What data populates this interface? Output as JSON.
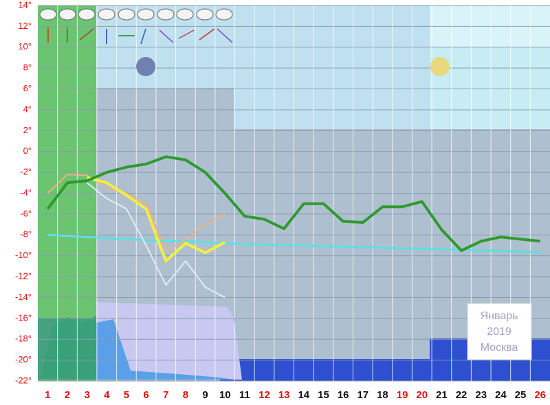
{
  "chart_data": {
    "type": "line",
    "categories": [
      1,
      2,
      3,
      4,
      5,
      6,
      7,
      8,
      9,
      10,
      11,
      12,
      13,
      14,
      15,
      16,
      17,
      18,
      19,
      20,
      21,
      22,
      23,
      24,
      25,
      26
    ],
    "category_colors": [
      "#e01010",
      "#e01010",
      "#e01010",
      "#e01010",
      "#e01010",
      "#e01010",
      "#e01010",
      "#e01010",
      "#111111",
      "#111111",
      "#111111",
      "#e01010",
      "#e01010",
      "#111111",
      "#111111",
      "#111111",
      "#111111",
      "#111111",
      "#e01010",
      "#e01010",
      "#111111",
      "#111111",
      "#111111",
      "#111111",
      "#111111",
      "#e01010"
    ],
    "ylim": [
      -22,
      14
    ],
    "yticks": [
      {
        "value": 14,
        "label": "14°"
      },
      {
        "value": 12,
        "label": "12°"
      },
      {
        "value": 10,
        "label": "10°"
      },
      {
        "value": 8,
        "label": "8°"
      },
      {
        "value": 6,
        "label": "6°"
      },
      {
        "value": 4,
        "label": "4°"
      },
      {
        "value": 2,
        "label": "2°"
      },
      {
        "value": 0,
        "label": "0°"
      },
      {
        "value": -2,
        "label": "-2°"
      },
      {
        "value": -4,
        "label": "-4°"
      },
      {
        "value": -6,
        "label": "-6°"
      },
      {
        "value": -8,
        "label": "-8°"
      },
      {
        "value": -10,
        "label": "-10°"
      },
      {
        "value": -12,
        "label": "-12°"
      },
      {
        "value": -14,
        "label": "-14°"
      },
      {
        "value": -16,
        "label": "-16°"
      },
      {
        "value": -18,
        "label": "-18°"
      },
      {
        "value": -20,
        "label": "-20°"
      },
      {
        "value": -22,
        "label": "-22°"
      }
    ],
    "grid": true,
    "series": [
      {
        "color": "#5ee0e0",
        "width": 3,
        "values": [
          -8.0,
          -8.1,
          -8.2,
          -8.3,
          -8.4,
          -8.5,
          -8.6,
          -8.6,
          -8.7,
          -8.8,
          -8.9,
          -8.9,
          -9.0,
          -9.0,
          -9.1,
          -9.1,
          -9.2,
          -9.2,
          -9.3,
          -9.3,
          -9.4,
          -9.4,
          -9.5,
          -9.5,
          -9.6,
          -9.7
        ]
      },
      {
        "color": "#dfeef5",
        "width": 2,
        "values": [
          null,
          null,
          -3.0,
          -4.5,
          -5.5,
          -9.0,
          -12.8,
          -10.5,
          -13.0,
          -14.0,
          null,
          null,
          null,
          null,
          null,
          null,
          null,
          null,
          null,
          null,
          null,
          null,
          null,
          null,
          null,
          null
        ]
      },
      {
        "color": "#f5b080",
        "width": 2,
        "values": [
          -4.0,
          -2.2,
          -2.3,
          -3.5,
          -4.0,
          -5.0,
          -9.5,
          -8.5,
          -7.0,
          -6.0,
          null,
          null,
          null,
          null,
          null,
          null,
          null,
          null,
          null,
          null,
          null,
          null,
          null,
          null,
          null,
          null
        ]
      },
      {
        "color": "#f0f040",
        "width": 4,
        "values": [
          null,
          null,
          -2.5,
          -3.0,
          -4.2,
          -5.5,
          -10.5,
          -8.8,
          -9.7,
          -8.7,
          null,
          null,
          null,
          null,
          null,
          null,
          null,
          null,
          null,
          null,
          null,
          null,
          null,
          null,
          null,
          null
        ]
      },
      {
        "color": "#2e9a2e",
        "width": 4,
        "values": [
          -5.5,
          -3.0,
          -2.8,
          -2.0,
          -1.5,
          -1.2,
          -0.5,
          -0.8,
          -2.0,
          -4.0,
          -6.2,
          -6.5,
          -7.4,
          -5.0,
          -5.0,
          -6.7,
          -6.8,
          -5.3,
          -5.3,
          -4.8,
          -7.5,
          -9.5,
          -8.6,
          -8.2,
          -8.4,
          -8.6
        ]
      }
    ],
    "annotation": {
      "month": "Январь",
      "year": "2019",
      "city": "Москва"
    }
  }
}
